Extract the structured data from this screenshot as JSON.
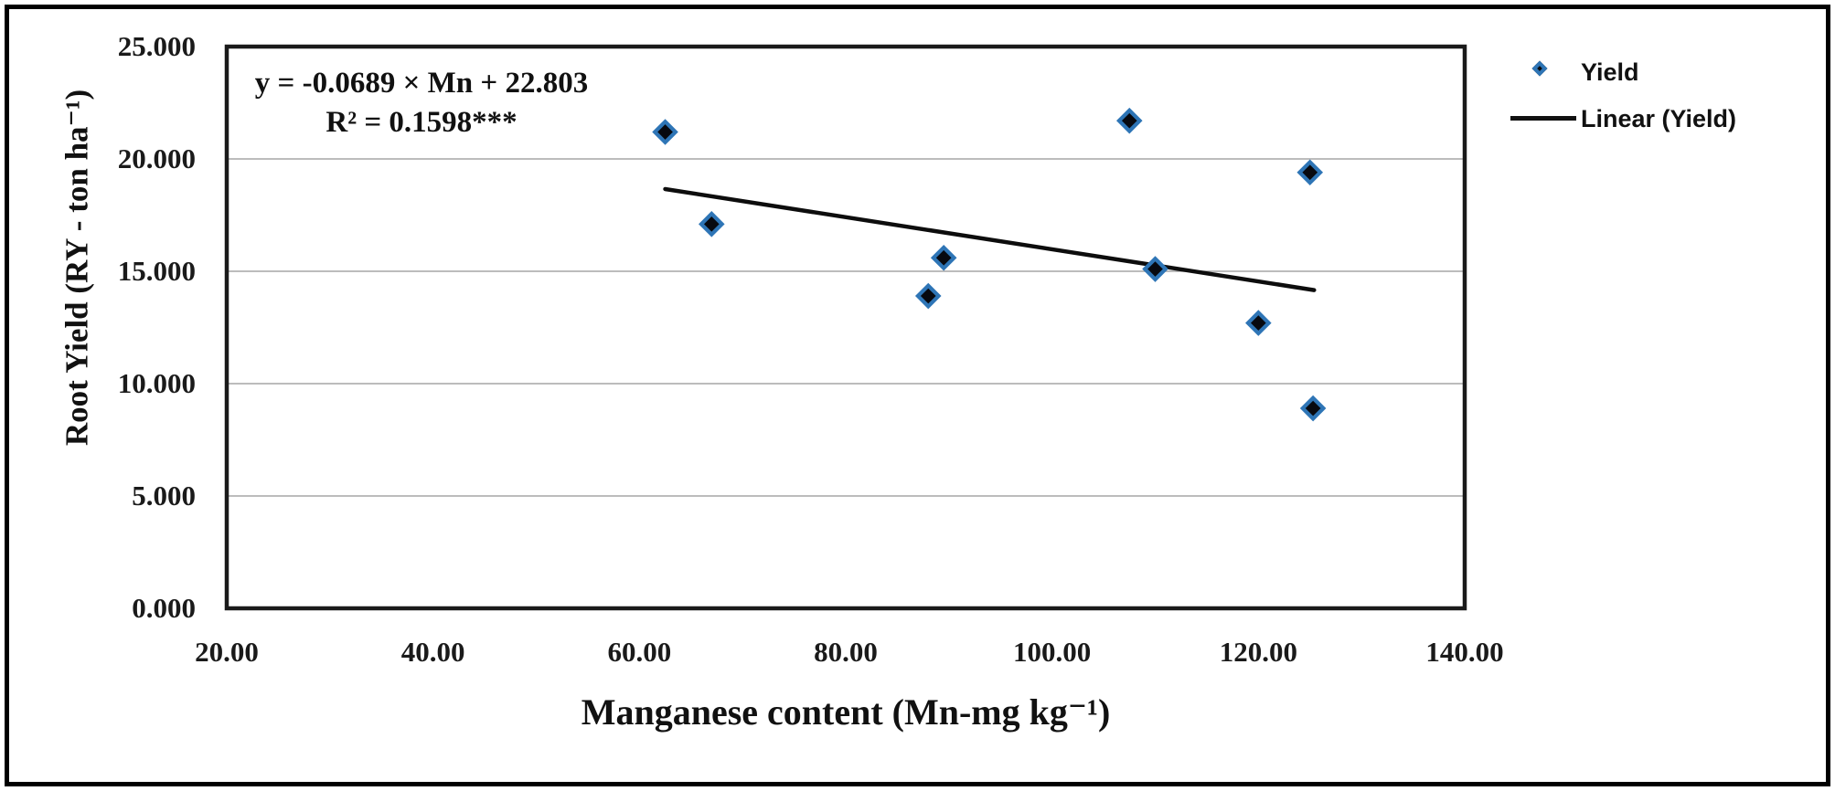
{
  "chart_data": {
    "type": "scatter",
    "title": "",
    "xlabel": "Manganese content (Mn-mg kg⁻¹)",
    "ylabel": "Root Yield (RY - ton ha⁻¹)",
    "xlim": [
      20,
      140
    ],
    "ylim": [
      0,
      25
    ],
    "x_ticks": [
      "20.00",
      "40.00",
      "60.00",
      "80.00",
      "100.00",
      "120.00",
      "140.00"
    ],
    "y_ticks": [
      "0.000",
      "5.000",
      "10.000",
      "15.000",
      "20.000",
      "25.000"
    ],
    "grid": "horizontal",
    "grid_y_values": [
      5,
      10,
      15,
      20
    ],
    "legend_position": "top-right-outside",
    "legend": [
      {
        "label": "Yield",
        "marker": "diamond"
      },
      {
        "label": "Linear (Yield)",
        "marker": "line"
      }
    ],
    "series": [
      {
        "name": "Yield",
        "type": "scatter",
        "points": [
          [
            62.5,
            21.2
          ],
          [
            67.0,
            17.1
          ],
          [
            88.0,
            13.9
          ],
          [
            89.5,
            15.6
          ],
          [
            107.5,
            21.7
          ],
          [
            110.0,
            15.1
          ],
          [
            120.0,
            12.7
          ],
          [
            125.0,
            19.4
          ],
          [
            125.3,
            8.9
          ]
        ]
      },
      {
        "name": "Linear (Yield)",
        "type": "line",
        "slope": -0.0689,
        "intercept": 22.803,
        "x_range": [
          62.5,
          125.4
        ]
      }
    ],
    "regression": {
      "equation": "y = -0.0689 × Mn + 22.803",
      "r_squared": "R² = 0.1598***"
    },
    "colors": {
      "marker_fill": "#07090f",
      "marker_edge": "#2e75b6",
      "trend_line": "#0d0d0d",
      "gridline": "#a6a6a6",
      "frame": "#1a1a1a",
      "figure_border": "#000000",
      "text": "#1a1a1a"
    }
  }
}
